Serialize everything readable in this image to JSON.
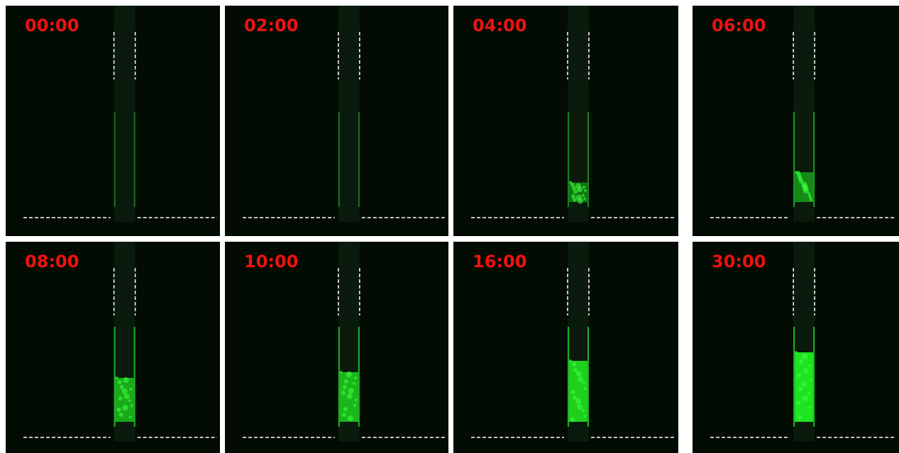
{
  "panels": [
    {
      "label": "00:00"
    },
    {
      "label": "02:00"
    },
    {
      "label": "04:00"
    },
    {
      "label": "06:00"
    },
    {
      "label": "08:00"
    },
    {
      "label": "10:00"
    },
    {
      "label": "16:00"
    },
    {
      "label": "30:00"
    }
  ]
}
